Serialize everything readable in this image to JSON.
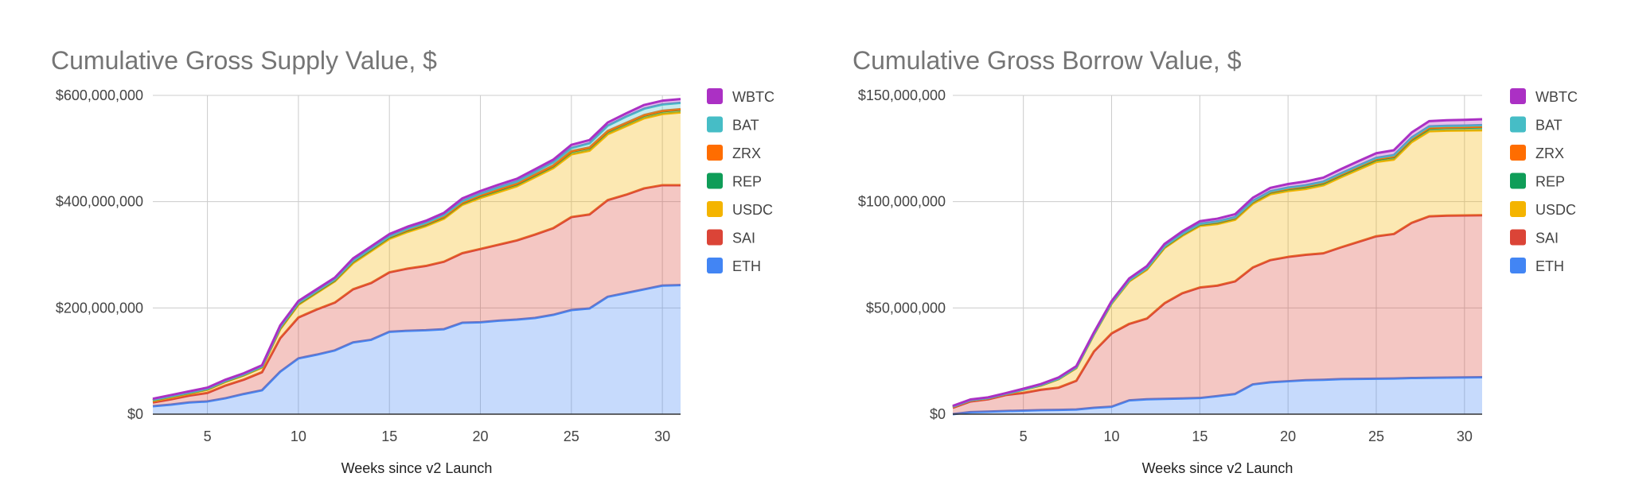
{
  "chart_data": [
    {
      "type": "area",
      "stacked": true,
      "title": "Cumulative Gross Supply Value, $",
      "xlabel": "Weeks since v2 Launch",
      "ylabel": "",
      "xlim": [
        2,
        31
      ],
      "ylim": [
        0,
        600000000
      ],
      "x_ticks": [
        5,
        10,
        15,
        20,
        25,
        30
      ],
      "y_ticks": [
        0,
        200000000,
        400000000,
        600000000
      ],
      "y_tick_labels": [
        "$0",
        "$200,000,000",
        "$400,000,000",
        "$600,000,000"
      ],
      "grid": true,
      "legend_position": "right",
      "x": [
        2,
        3,
        4,
        5,
        6,
        7,
        8,
        9,
        10,
        11,
        12,
        13,
        14,
        15,
        16,
        17,
        18,
        19,
        20,
        21,
        22,
        23,
        24,
        25,
        26,
        27,
        28,
        29,
        30,
        31
      ],
      "series": [
        {
          "name": "ETH",
          "color": "#4285F4",
          "values": [
            15000000,
            18000000,
            22000000,
            24000000,
            30000000,
            38000000,
            45000000,
            80000000,
            105000000,
            112000000,
            120000000,
            135000000,
            140000000,
            155000000,
            157000000,
            158000000,
            160000000,
            172000000,
            173000000,
            176000000,
            178000000,
            181000000,
            187000000,
            196000000,
            199000000,
            221000000,
            228000000,
            235000000,
            242000000,
            243000000
          ]
        },
        {
          "name": "SAI",
          "color": "#DB4437",
          "values": [
            7000000,
            10000000,
            13000000,
            16000000,
            24000000,
            27000000,
            34000000,
            63000000,
            77000000,
            85000000,
            90000000,
            100000000,
            107000000,
            112000000,
            117000000,
            121000000,
            127000000,
            131000000,
            138000000,
            143000000,
            149000000,
            157000000,
            163000000,
            175000000,
            177000000,
            182000000,
            185000000,
            190000000,
            189000000,
            188000000
          ]
        },
        {
          "name": "USDC",
          "color": "#F4B400",
          "values": [
            3000000,
            4000000,
            4000000,
            6000000,
            7000000,
            8000000,
            9000000,
            17000000,
            24000000,
            31000000,
            40000000,
            49000000,
            60000000,
            63000000,
            69000000,
            75000000,
            81000000,
            91000000,
            96000000,
            99000000,
            102000000,
            108000000,
            113000000,
            118000000,
            120000000,
            124000000,
            129000000,
            132000000,
            134000000,
            137000000
          ]
        },
        {
          "name": "REP",
          "color": "#0F9D58",
          "values": [
            1000000,
            1000000,
            1000000,
            1000000,
            1000000,
            1000000,
            1000000,
            2000000,
            2000000,
            2000000,
            2000000,
            3000000,
            3000000,
            3000000,
            3000000,
            3000000,
            3000000,
            3000000,
            4000000,
            4000000,
            4000000,
            4000000,
            4000000,
            5000000,
            5000000,
            5000000,
            5000000,
            5000000,
            5000000,
            5000000
          ]
        },
        {
          "name": "ZRX",
          "color": "#FF6D00",
          "values": [
            500000,
            500000,
            500000,
            500000,
            500000,
            500000,
            500000,
            1000000,
            1000000,
            1000000,
            1000000,
            1000000,
            1000000,
            1000000,
            1000000,
            1000000,
            1000000,
            1000000,
            1000000,
            1000000,
            1000000,
            1000000,
            1000000,
            1000000,
            1000000,
            1000000,
            1000000,
            1000000,
            1000000,
            1000000
          ]
        },
        {
          "name": "BAT",
          "color": "#46BDC6",
          "values": [
            500000,
            500000,
            500000,
            500000,
            500000,
            500000,
            500000,
            1000000,
            1000000,
            1000000,
            1000000,
            1000000,
            1000000,
            1000000,
            2000000,
            2000000,
            3000000,
            3000000,
            3000000,
            4000000,
            4000000,
            5000000,
            6000000,
            6000000,
            8000000,
            10000000,
            12000000,
            12000000,
            12000000,
            12000000
          ]
        },
        {
          "name": "WBTC",
          "color": "#AB30C4",
          "values": [
            2000000,
            2000000,
            2000000,
            2000000,
            2000000,
            2000000,
            2000000,
            3000000,
            3000000,
            3000000,
            3000000,
            4000000,
            4000000,
            4000000,
            4000000,
            4000000,
            4000000,
            5000000,
            5000000,
            5000000,
            5000000,
            5000000,
            5000000,
            6000000,
            6000000,
            6000000,
            6000000,
            7000000,
            7000000,
            7000000
          ]
        }
      ]
    },
    {
      "type": "area",
      "stacked": true,
      "title": "Cumulative Gross Borrow Value, $",
      "xlabel": "Weeks since v2 Launch",
      "ylabel": "",
      "xlim": [
        1,
        31
      ],
      "ylim": [
        0,
        150000000
      ],
      "x_ticks": [
        5,
        10,
        15,
        20,
        25,
        30
      ],
      "y_ticks": [
        0,
        50000000,
        100000000,
        150000000
      ],
      "y_tick_labels": [
        "$0",
        "$50,000,000",
        "$100,000,000",
        "$150,000,000"
      ],
      "grid": true,
      "legend_position": "right",
      "x": [
        1,
        2,
        3,
        4,
        5,
        6,
        7,
        8,
        9,
        10,
        11,
        12,
        13,
        14,
        15,
        16,
        17,
        18,
        19,
        20,
        21,
        22,
        23,
        24,
        25,
        26,
        27,
        28,
        29,
        30,
        31
      ],
      "series": [
        {
          "name": "ETH",
          "color": "#4285F4",
          "values": [
            0,
            1000000,
            1200000,
            1500000,
            1700000,
            1900000,
            2000000,
            2200000,
            3000000,
            3500000,
            6500000,
            7000000,
            7200000,
            7400000,
            7600000,
            8500000,
            9500000,
            14000000,
            15000000,
            15500000,
            16000000,
            16200000,
            16500000,
            16600000,
            16700000,
            16800000,
            17000000,
            17100000,
            17200000,
            17300000,
            17400000
          ]
        },
        {
          "name": "SAI",
          "color": "#DB4437",
          "values": [
            3000000,
            5000000,
            5800000,
            7500000,
            8300000,
            9600000,
            10500000,
            13500000,
            26500000,
            34500000,
            36000000,
            38000000,
            45000000,
            49500000,
            52000000,
            52000000,
            53000000,
            55000000,
            57500000,
            58500000,
            59000000,
            59500000,
            62000000,
            64500000,
            67000000,
            68000000,
            73000000,
            76000000,
            76200000,
            76200000,
            76200000
          ]
        },
        {
          "name": "USDC",
          "color": "#F4B400",
          "values": [
            500000,
            500000,
            500000,
            500000,
            1500000,
            2000000,
            4000000,
            6000000,
            8000000,
            14000000,
            20000000,
            23000000,
            26000000,
            27000000,
            29000000,
            29000000,
            29000000,
            30000000,
            31000000,
            31000000,
            31000000,
            32000000,
            33000000,
            34000000,
            35000000,
            35000000,
            38000000,
            40000000,
            40000000,
            40000000,
            40000000
          ]
        },
        {
          "name": "REP",
          "color": "#0F9D58",
          "values": [
            100000,
            100000,
            100000,
            100000,
            100000,
            100000,
            100000,
            200000,
            200000,
            300000,
            400000,
            500000,
            500000,
            600000,
            600000,
            700000,
            700000,
            800000,
            900000,
            1000000,
            1000000,
            1000000,
            1000000,
            1100000,
            1100000,
            1200000,
            1200000,
            1300000,
            1300000,
            1300000,
            1400000
          ]
        },
        {
          "name": "ZRX",
          "color": "#FF6D00",
          "values": [
            0,
            0,
            0,
            0,
            0,
            100000,
            100000,
            100000,
            100000,
            100000,
            100000,
            100000,
            200000,
            200000,
            200000,
            200000,
            200000,
            200000,
            200000,
            200000,
            300000,
            300000,
            300000,
            300000,
            300000,
            300000,
            300000,
            300000,
            300000,
            300000,
            300000
          ]
        },
        {
          "name": "BAT",
          "color": "#46BDC6",
          "values": [
            0,
            0,
            0,
            0,
            0,
            100000,
            100000,
            100000,
            100000,
            100000,
            100000,
            200000,
            200000,
            200000,
            200000,
            300000,
            300000,
            300000,
            300000,
            400000,
            400000,
            400000,
            500000,
            500000,
            500000,
            600000,
            600000,
            700000,
            700000,
            700000,
            700000
          ]
        },
        {
          "name": "WBTC",
          "color": "#AB30C4",
          "values": [
            300000,
            300000,
            300000,
            300000,
            400000,
            400000,
            500000,
            500000,
            600000,
            700000,
            800000,
            900000,
            1000000,
            1100000,
            1200000,
            1300000,
            1400000,
            1500000,
            1600000,
            1700000,
            1800000,
            1900000,
            2000000,
            2100000,
            2200000,
            2300000,
            2400000,
            2500000,
            2600000,
            2700000,
            2800000
          ]
        }
      ]
    }
  ]
}
